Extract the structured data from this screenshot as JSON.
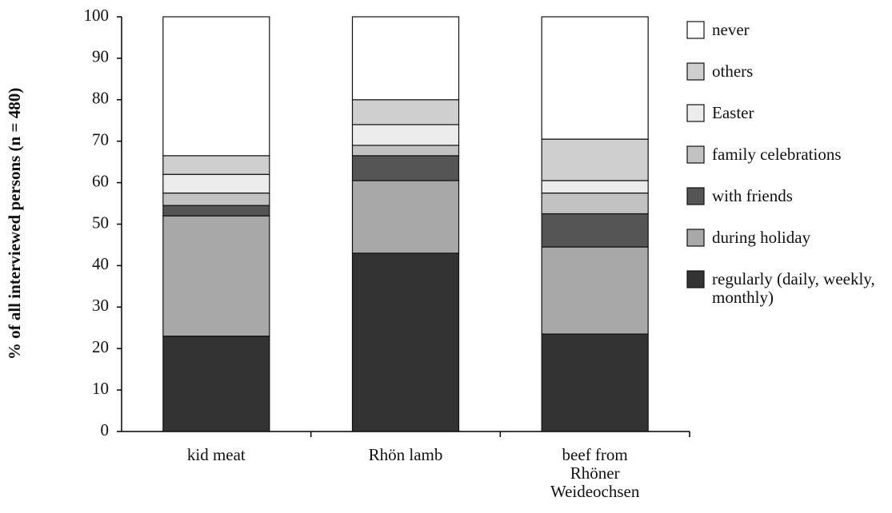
{
  "chart_data": {
    "type": "stacked_bar",
    "y_label": "% of all interviewed persons (n = 480)",
    "categories": [
      "kid meat",
      "Rhön lamb",
      "beef from Rhöner Weideochsen"
    ],
    "series": [
      {
        "name": "regularly (daily, weekly, monthly)",
        "color": "#333333",
        "values": [
          23,
          43,
          23.5
        ]
      },
      {
        "name": "during holiday",
        "color": "#a8a8a8",
        "values": [
          29,
          17.5,
          21
        ]
      },
      {
        "name": "with friends",
        "color": "#555555",
        "values": [
          2.5,
          6,
          8
        ]
      },
      {
        "name": "family celebrations",
        "color": "#c2c2c2",
        "values": [
          3,
          2.5,
          5
        ]
      },
      {
        "name": "Easter",
        "color": "#ececec",
        "values": [
          4.5,
          5,
          3
        ]
      },
      {
        "name": "others",
        "color": "#cfcfcf",
        "values": [
          4.5,
          6,
          10
        ]
      },
      {
        "name": "never",
        "color": "#ffffff",
        "values": [
          33.5,
          20,
          29.5
        ]
      }
    ],
    "ylim": [
      0,
      100
    ],
    "yticks": [
      0,
      10,
      20,
      30,
      40,
      50,
      60,
      70,
      80,
      90,
      100
    ]
  }
}
